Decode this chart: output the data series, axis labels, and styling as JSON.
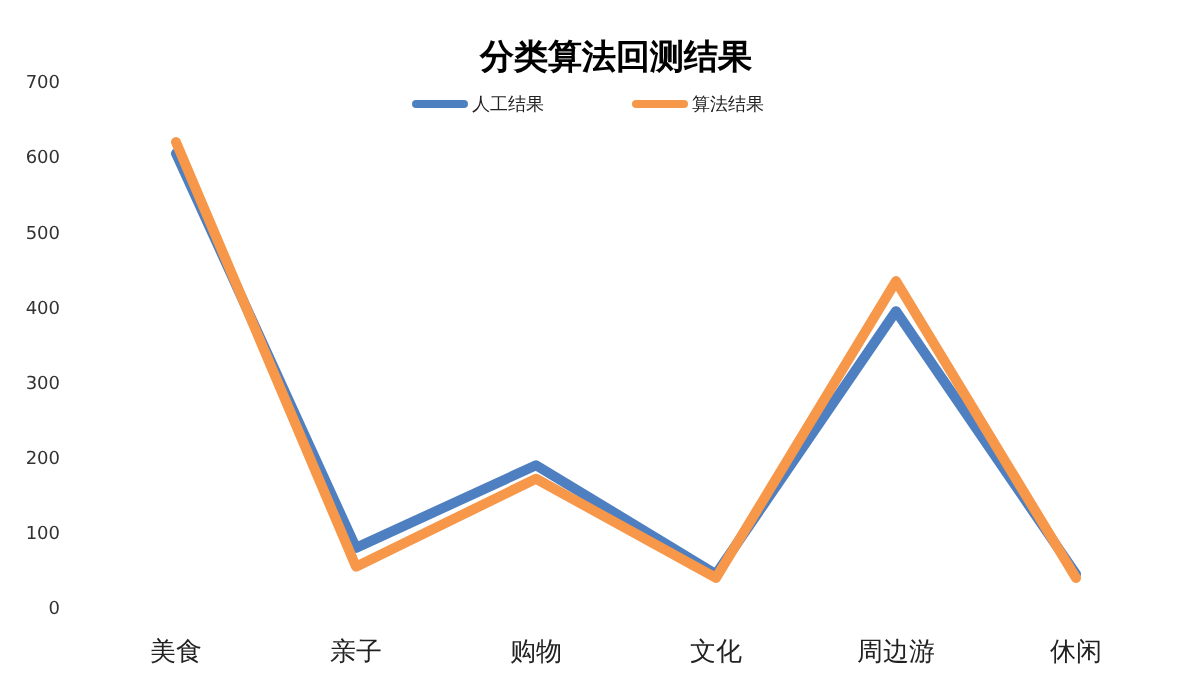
{
  "chart_data": {
    "type": "line",
    "title": "分类算法回测结果",
    "categories": [
      "美食",
      "亲子",
      "购物",
      "文化",
      "周边游",
      "休闲"
    ],
    "series": [
      {
        "name": "人工结果",
        "color": "#4e7fc0",
        "values": [
          605,
          80,
          190,
          45,
          395,
          45
        ]
      },
      {
        "name": "算法结果",
        "color": "#f6974a",
        "values": [
          620,
          55,
          172,
          40,
          435,
          40
        ]
      }
    ],
    "ylim": [
      0,
      700
    ],
    "yticks": [
      0,
      100,
      200,
      300,
      400,
      500,
      600,
      700
    ],
    "grid": false,
    "legend": "top",
    "marker": "none",
    "line_style": "solid"
  }
}
